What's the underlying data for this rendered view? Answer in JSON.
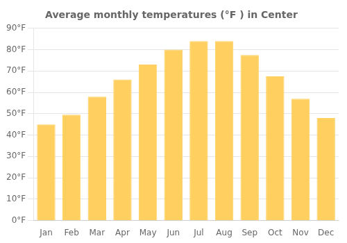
{
  "chart_data": {
    "type": "bar",
    "title": "Average monthly temperatures (°F ) in Center",
    "categories": [
      "Jan",
      "Feb",
      "Mar",
      "Apr",
      "May",
      "Jun",
      "Jul",
      "Aug",
      "Sep",
      "Oct",
      "Nov",
      "Dec"
    ],
    "values": [
      45,
      49.5,
      58,
      66,
      73,
      80,
      84,
      84,
      77.5,
      67.5,
      57,
      48
    ],
    "color": "#FFD060",
    "ylim": [
      0,
      90
    ],
    "yticks": [
      {
        "value": 0,
        "label": "0°F"
      },
      {
        "value": 10,
        "label": "10°F"
      },
      {
        "value": 20,
        "label": "20°F"
      },
      {
        "value": 30,
        "label": "30°F"
      },
      {
        "value": 40,
        "label": "40°F"
      },
      {
        "value": 50,
        "label": "50°F"
      },
      {
        "value": 60,
        "label": "60°F"
      },
      {
        "value": 70,
        "label": "70°F"
      },
      {
        "value": 80,
        "label": "80°F"
      },
      {
        "value": 90,
        "label": "90°F"
      }
    ],
    "grid": true
  }
}
